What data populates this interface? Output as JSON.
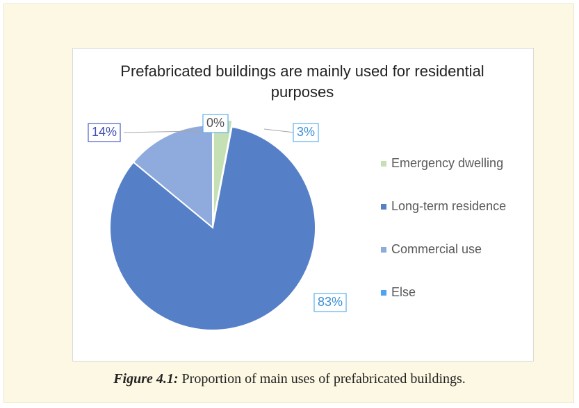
{
  "chart_data": {
    "type": "pie",
    "title": "Prefabricated buildings are mainly used for residential purposes",
    "categories": [
      "Emergency dwelling",
      "Long-term residence",
      "Commercial use",
      "Else"
    ],
    "values": [
      3,
      83,
      14,
      0
    ],
    "value_labels": [
      "3%",
      "83%",
      "14%",
      "0%"
    ],
    "colors": [
      "#c5e0b4",
      "#5580c8",
      "#8faadc",
      "#4ea3f2"
    ],
    "legend": "right"
  },
  "caption": {
    "label": "Figure 4.1:",
    "text": "Proportion of main uses of prefabricated buildings."
  }
}
